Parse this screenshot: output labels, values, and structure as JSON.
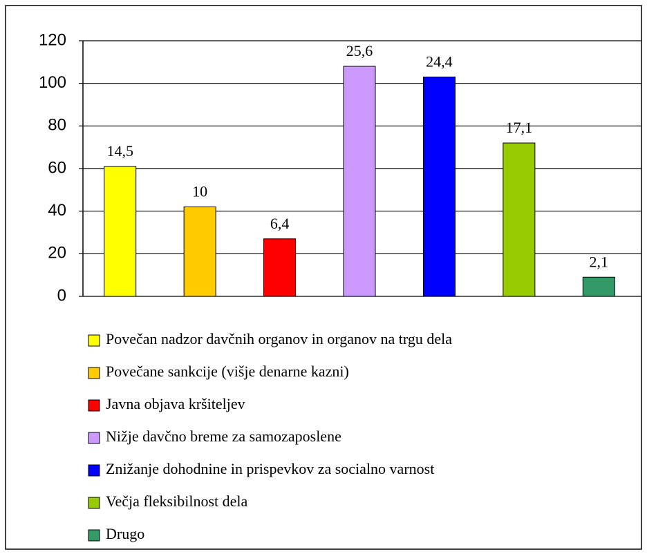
{
  "chart_data": {
    "type": "bar",
    "categories": [
      "Povečan nadzor davčnih organov in organov na trgu dela",
      "Povečane sankcije (višje denarne kazni)",
      "Javna objava kršiteljev",
      "Nižje davčno breme za samozaposlene",
      "Znižanje dohodnine in prispevkov za socialno varnost",
      "Večja fleksibilnost dela",
      "Drugo"
    ],
    "values": [
      61,
      42,
      27,
      108,
      103,
      72,
      9
    ],
    "labels": [
      "14,5",
      "10",
      "6,4",
      "25,6",
      "24,4",
      "17,1",
      "2,1"
    ],
    "colors": [
      "#ffff00",
      "#ffcc00",
      "#ff0000",
      "#cc99ff",
      "#0000ff",
      "#99cc00",
      "#339966"
    ],
    "ylim": [
      0,
      120
    ],
    "yticks": [
      0,
      20,
      40,
      60,
      80,
      100,
      120
    ],
    "grid": true
  }
}
